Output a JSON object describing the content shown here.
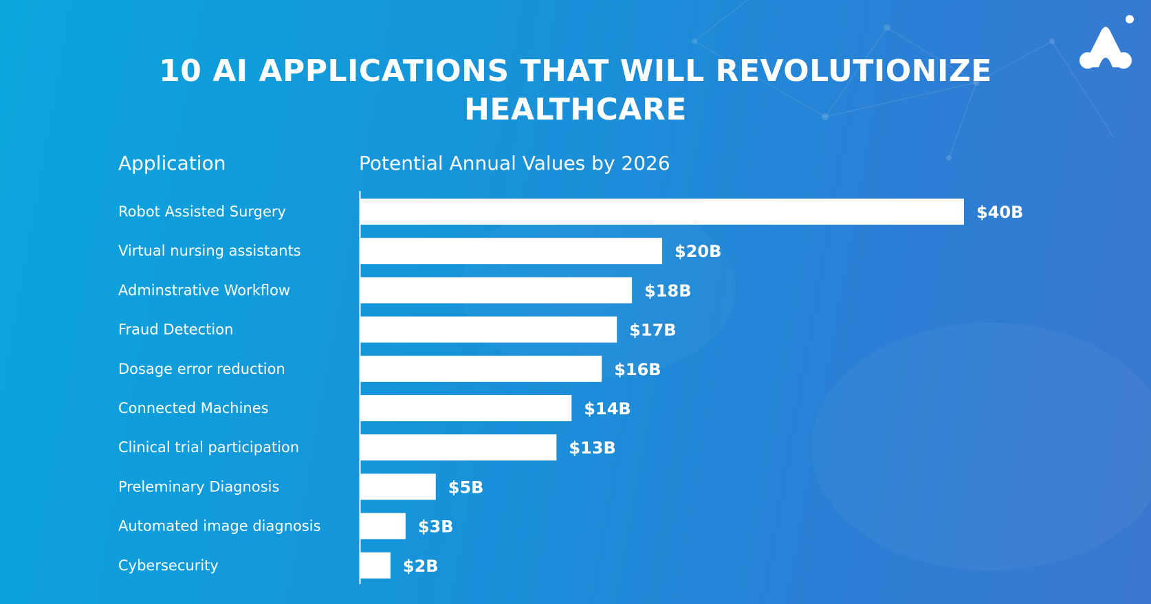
{
  "title_lines": [
    "10 AI APPLICATIONS THAT WILL REVOLUTIONIZE",
    "HEALTHCARE"
  ],
  "column_headers": {
    "application": "Application",
    "values": "Potential Annual Values by 2026"
  },
  "logo": {
    "icon": "brand-logo-icon",
    "color": "#ffffff"
  },
  "colors": {
    "bar": "#ffffff",
    "text": "#ffffff",
    "background_start": "#0aa6dc",
    "background_end": "#3b78cf"
  },
  "chart_data": {
    "type": "bar",
    "orientation": "horizontal",
    "categories": [
      "Robot Assisted Surgery",
      "Virtual nursing assistants",
      "Adminstrative Workflow",
      "Fraud Detection",
      "Dosage error reduction",
      "Connected Machines",
      "Clinical trial participation",
      "Preleminary Diagnosis",
      "Automated image diagnosis",
      "Cybersecurity"
    ],
    "values": [
      40,
      20,
      18,
      17,
      16,
      14,
      13,
      5,
      3,
      2
    ],
    "value_labels": [
      "$40B",
      "$20B",
      "$18B",
      "$17B",
      "$16B",
      "$14B",
      "$13B",
      "$5B",
      "$3B",
      "$2B"
    ],
    "title": "10 AI APPLICATIONS THAT WILL REVOLUTIONIZE HEALTHCARE",
    "xlabel": "Potential Annual Values by 2026",
    "ylabel": "Application",
    "grid": false,
    "legend": "none"
  }
}
